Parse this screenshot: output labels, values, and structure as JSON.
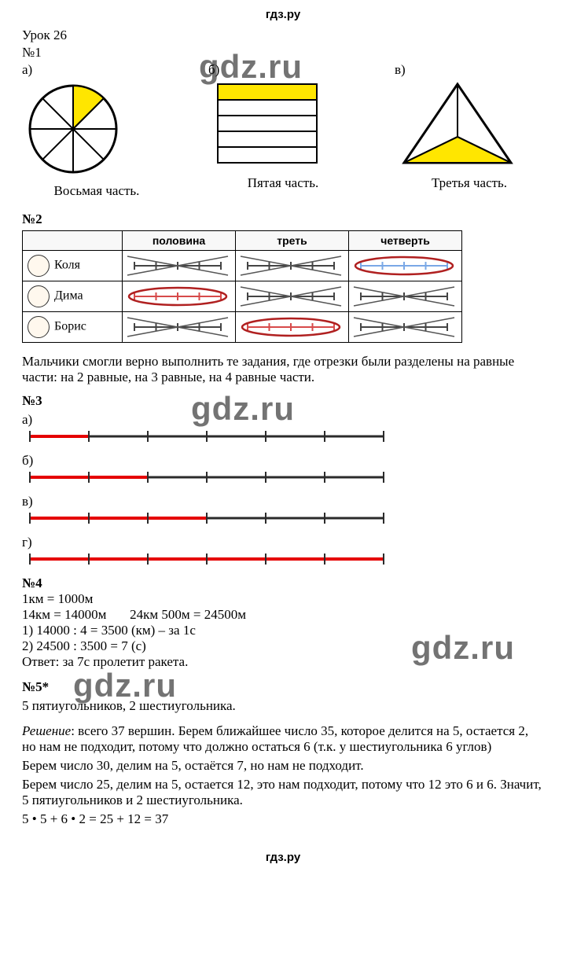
{
  "site_name": "гдз.ру",
  "lesson_title": "Урок 26",
  "ex1": {
    "num": "№1",
    "a_label": "а)",
    "b_label": "б)",
    "v_label": "в)",
    "a_caption": "Восьмая часть.",
    "b_caption": "Пятая часть.",
    "v_caption": "Третья часть.",
    "highlight_color": "#ffe600",
    "stroke_color": "#000000"
  },
  "ex2": {
    "num": "№2",
    "headers": [
      "",
      "половина",
      "треть",
      "четверть"
    ],
    "rows": [
      {
        "name": "Коля",
        "cells": [
          {
            "correct": false
          },
          {
            "correct": false
          },
          {
            "correct": true,
            "color": "#7aa8e6"
          }
        ]
      },
      {
        "name": "Дима",
        "cells": [
          {
            "correct": true,
            "color": "#d74a4a"
          },
          {
            "correct": false
          },
          {
            "correct": false
          }
        ]
      },
      {
        "name": "Борис",
        "cells": [
          {
            "correct": false
          },
          {
            "correct": true,
            "color": "#d74a4a"
          },
          {
            "correct": false
          }
        ]
      }
    ],
    "cross_color": "#555555",
    "circle_color": "#b02020",
    "note": "Мальчики смогли верно выполнить те задания, где отрезки были разделены на равные части: на 2 равные, на 3 равные, на 4 равные части."
  },
  "ex3": {
    "num": "№3",
    "lines": [
      {
        "label": "а)",
        "ticks": 7,
        "highlight_to": 1,
        "hl_color": "#e50000"
      },
      {
        "label": "б)",
        "ticks": 7,
        "highlight_to": 2,
        "hl_color": "#e50000"
      },
      {
        "label": "в)",
        "ticks": 7,
        "highlight_to": 3,
        "hl_color": "#e50000"
      },
      {
        "label": "г)",
        "ticks": 7,
        "highlight_to": 6,
        "hl_color": "#e50000"
      }
    ],
    "base_color": "#2b2b2b"
  },
  "ex4": {
    "num": "№4",
    "lines": [
      "1км = 1000м",
      "14км = 14000м       24км 500м = 24500м",
      "1) 14000 : 4 = 3500 (км) – за 1с",
      "2) 24500 : 3500 = 7 (с)",
      "Ответ: за 7с пролетит ракета."
    ]
  },
  "ex5": {
    "num": "№5*",
    "answer": "5 пятиугольников, 2 шестиугольника.",
    "solution_label": "Решение",
    "solution_lines": [
      ": всего 37 вершин. Берем ближайшее число 35, которое делится на 5, остается 2, но нам не подходит, потому что должно остаться 6 (т.к. у шестиугольника 6 углов)",
      "Берем число 30, делим на 5, остаётся 7, но нам не подходит.",
      "Берем число 25, делим на 5, остается 12, это нам подходит, потому что 12 это 6 и 6. Значит, 5 пятиугольников и 2 шестиугольника.",
      "5 • 5 + 6 • 2 = 25 + 12 = 37"
    ]
  },
  "watermark_text": "gdz.ru",
  "footer": "гдз.ру"
}
